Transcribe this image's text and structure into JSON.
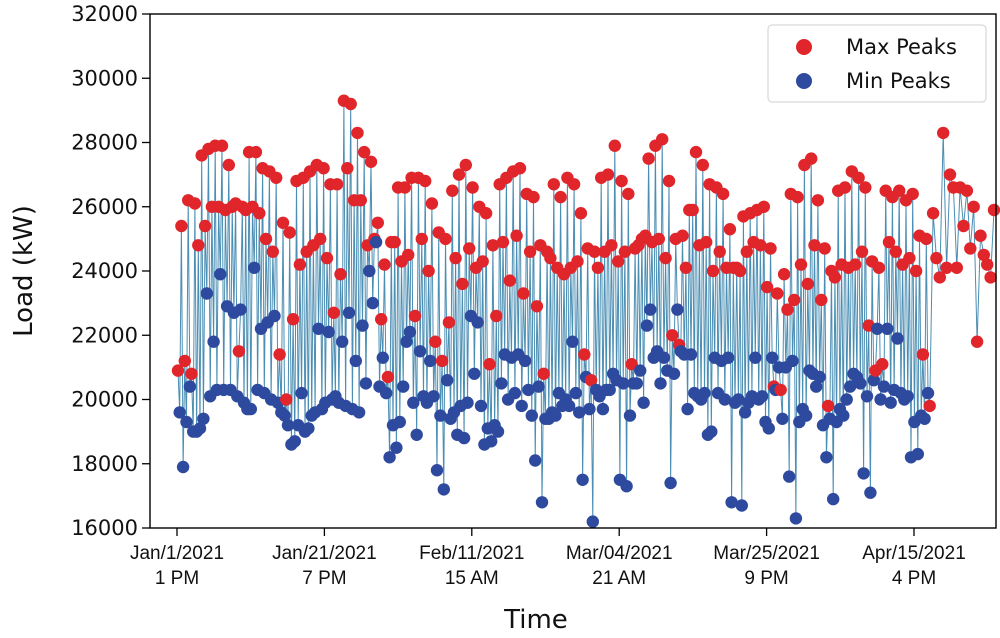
{
  "chart_data": {
    "type": "line+scatter",
    "xlabel": "Time",
    "ylabel": "Load (kW)",
    "ylim": [
      16000,
      32000
    ],
    "yticks": [
      16000,
      18000,
      20000,
      22000,
      24000,
      26000,
      28000,
      30000,
      32000
    ],
    "xticks": [
      {
        "line1": "Jan/1/2021",
        "line2": "1 PM"
      },
      {
        "line1": "Jan/21/2021",
        "line2": "7 PM"
      },
      {
        "line1": "Feb/11/2021",
        "line2": "15 AM"
      },
      {
        "line1": "Mar/04/2021",
        "line2": "21 AM"
      },
      {
        "line1": "Mar/25/2021",
        "line2": "9 PM"
      },
      {
        "line1": "Apr/15/2021",
        "line2": "4 PM"
      }
    ],
    "legend": {
      "position": "top-right",
      "entries": [
        "Max Peaks",
        "Min Peaks"
      ]
    },
    "grid": false,
    "colors": {
      "max": "#e0252b",
      "min": "#2e4a9e",
      "line": "#2b7aa6"
    },
    "series": [
      {
        "name": "Max Peaks",
        "values": [
          20900,
          25400,
          21200,
          26200,
          20800,
          26100,
          24800,
          27600,
          25400,
          27800,
          26000,
          27900,
          26000,
          27900,
          25900,
          27300,
          26000,
          26100,
          21500,
          26000,
          25900,
          27700,
          26000,
          27700,
          25800,
          27200,
          25000,
          27100,
          24600,
          26900,
          21400,
          25500,
          20000,
          25200,
          22500,
          26800,
          24200,
          26900,
          24600,
          27100,
          24800,
          27300,
          25000,
          27200,
          24400,
          26700,
          22700,
          26700,
          23900,
          29300,
          27200,
          29200,
          26200,
          28300,
          26200,
          27700,
          24800,
          27400,
          25000,
          25500,
          22500,
          24200,
          20700,
          24900,
          24900,
          26600,
          24300,
          26600,
          24500,
          26900,
          22600,
          26900,
          25000,
          26800,
          24000,
          26100,
          21800,
          25200,
          21200,
          25000,
          22400,
          26500,
          24400,
          27000,
          23600,
          27300,
          24700,
          26600,
          24100,
          26000,
          24300,
          25800,
          21100,
          24800,
          22600,
          26700,
          24900,
          26900,
          23700,
          27100,
          25100,
          27200,
          23300,
          26400,
          24600,
          26300,
          22900,
          24800,
          20800,
          24600,
          24400,
          26700,
          24100,
          26300,
          23900,
          26900,
          24100,
          26700,
          24300,
          25800,
          21400,
          24700,
          20600,
          24600,
          24100,
          26900,
          24600,
          27000,
          24800,
          27900,
          24300,
          26800,
          24600,
          26400,
          21100,
          24700,
          24800,
          25000,
          25100,
          27500,
          24900,
          27900,
          25000,
          28100,
          24400,
          26800,
          22000,
          25000,
          21700,
          25100,
          24100,
          25900,
          25900,
          27700,
          24800,
          27300,
          24900,
          26700,
          24000,
          26600,
          24600,
          26400,
          24100,
          25300,
          24100,
          24100,
          24000,
          25700,
          24600,
          25800,
          24900,
          25900,
          24800,
          26000,
          23500,
          24700,
          20400,
          23300,
          20300,
          23900,
          22800,
          26400,
          23100,
          26300,
          24200,
          27300,
          23600,
          27500,
          24800,
          26200,
          23100,
          24700,
          19800,
          24000,
          23800,
          26500,
          24200,
          26600,
          24100,
          27100,
          24200,
          26900,
          24600,
          26600,
          22300,
          24300,
          20900,
          24100,
          21100,
          26500,
          24900,
          26300,
          24600,
          26500,
          24200,
          26200,
          24400,
          26400,
          24000,
          25100,
          21400,
          25000,
          19800,
          25800,
          24400,
          23800,
          28300,
          24100,
          27000,
          26600,
          24100,
          26600,
          25400,
          26500,
          24700,
          26000,
          21800,
          25100,
          24500,
          24200,
          23800,
          25900
        ],
        "min": [
          19600,
          17900,
          19300,
          20400,
          19000,
          19000,
          19100,
          19400,
          23300,
          20100,
          21800,
          20300,
          23900,
          20300,
          22900,
          20300,
          22700,
          20100,
          22800,
          19900,
          19700,
          19700,
          24100,
          20300,
          22200,
          20200,
          22400,
          20000,
          22600,
          19900,
          19600,
          19500,
          19200,
          18600,
          18700,
          19200,
          20200,
          19000,
          19100,
          19500,
          19600,
          22200,
          19700,
          19900,
          22100,
          20000,
          20100,
          19900,
          21800,
          19800,
          22700,
          19700,
          21200,
          19600,
          22300,
          20500,
          24000,
          23000,
          24900,
          20400,
          21300,
          20200,
          18200,
          19200,
          18500,
          19300,
          20400,
          21800,
          22100,
          19900,
          18900,
          21500,
          20100,
          19900,
          21200,
          20100,
          17800,
          19500,
          17200,
          20600,
          19400,
          19600,
          18900,
          19800,
          18800,
          19900,
          22600,
          20800,
          22400,
          19800,
          18600,
          19100,
          18700,
          19200,
          19000,
          20500,
          21400,
          20000,
          21300,
          20200,
          21400,
          19800,
          21200,
          20300,
          19500,
          18100,
          20400,
          16800,
          19400,
          19400,
          19600,
          19500,
          20200,
          19800,
          20000,
          19800,
          21800,
          20200,
          19600,
          17500,
          20700,
          19700,
          16200,
          20300,
          20100,
          19700,
          20300,
          20300,
          20800,
          20600,
          17500,
          20500,
          17300,
          19500,
          20500,
          20500,
          20900,
          19900,
          22300,
          22800,
          21300,
          21500,
          20500,
          21300,
          20900,
          17400,
          20800,
          22800,
          21500,
          21400,
          19700,
          21400,
          20200,
          20100,
          20000,
          20200,
          18900,
          19000,
          21300,
          20200,
          21200,
          20000,
          21300,
          16800,
          19900,
          20000,
          16700,
          19600,
          19900,
          20100,
          21300,
          20000,
          20100,
          19300,
          19100,
          21300,
          20300,
          21000,
          19400,
          21000,
          17600,
          21200,
          16300,
          19300,
          19700,
          19500,
          20900,
          20800,
          20400,
          20700,
          19200,
          18200,
          19400,
          16900,
          19300,
          19700,
          19500,
          20000,
          20400,
          20800,
          20700,
          20500,
          17700,
          20100,
          17100,
          20600,
          22200,
          20000,
          20400,
          22200,
          19900,
          20300,
          21900,
          20200,
          20000,
          20100,
          18200,
          19300,
          18300,
          19500,
          19400,
          20200
        ],
        "min_note": ""
      },
      {
        "name": "Min Peaks",
        "values": []
      }
    ]
  }
}
